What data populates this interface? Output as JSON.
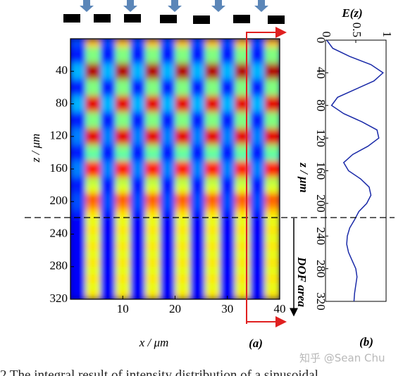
{
  "chart_data": [
    {
      "type": "heatmap",
      "xlabel": "x / μm",
      "ylabel": "z / μm",
      "panel_label": "(a)",
      "annotation": "DOF area",
      "xlim": [
        0,
        40
      ],
      "ylim": [
        320,
        0
      ],
      "xticks": [
        10,
        20,
        30,
        40
      ],
      "yticks": [
        40,
        80,
        120,
        160,
        200,
        240,
        280,
        320
      ],
      "colormap": "jet",
      "zlim": [
        0,
        1
      ],
      "matrix": [
        [
          0.2,
          0.7,
          0.2,
          0.7,
          0.2,
          0.7,
          0.2,
          0.7,
          0.2,
          0.7,
          0.2,
          0.7,
          0.2,
          0.7
        ],
        [
          0.15,
          0.5,
          0.15,
          0.5,
          0.15,
          0.5,
          0.15,
          0.5,
          0.15,
          0.5,
          0.15,
          0.5,
          0.15,
          0.5
        ],
        [
          0.15,
          0.5,
          0.15,
          0.5,
          0.15,
          0.5,
          0.15,
          0.5,
          0.15,
          0.5,
          0.15,
          0.5,
          0.15,
          0.5
        ],
        [
          0.3,
          0.95,
          0.3,
          0.95,
          0.3,
          0.95,
          0.3,
          0.95,
          0.3,
          0.95,
          0.3,
          0.95,
          0.3,
          0.95
        ],
        [
          0.3,
          0.95,
          0.3,
          0.95,
          0.3,
          0.95,
          0.3,
          0.95,
          0.3,
          0.95,
          0.3,
          0.95,
          0.3,
          0.95
        ],
        [
          0.15,
          0.5,
          0.15,
          0.5,
          0.15,
          0.5,
          0.15,
          0.5,
          0.15,
          0.5,
          0.15,
          0.5,
          0.15,
          0.5
        ],
        [
          0.15,
          0.5,
          0.15,
          0.5,
          0.15,
          0.5,
          0.15,
          0.5,
          0.15,
          0.5,
          0.15,
          0.5,
          0.15,
          0.5
        ],
        [
          0.3,
          0.9,
          0.3,
          0.9,
          0.3,
          0.9,
          0.3,
          0.9,
          0.3,
          0.9,
          0.3,
          0.9,
          0.3,
          0.9
        ],
        [
          0.3,
          0.9,
          0.3,
          0.9,
          0.3,
          0.9,
          0.3,
          0.9,
          0.3,
          0.9,
          0.3,
          0.9,
          0.3,
          0.9
        ],
        [
          0.15,
          0.5,
          0.15,
          0.5,
          0.15,
          0.5,
          0.15,
          0.5,
          0.15,
          0.5,
          0.15,
          0.5,
          0.15,
          0.5
        ],
        [
          0.15,
          0.5,
          0.15,
          0.5,
          0.15,
          0.5,
          0.15,
          0.5,
          0.15,
          0.5,
          0.15,
          0.5,
          0.15,
          0.5
        ],
        [
          0.25,
          0.9,
          0.25,
          0.9,
          0.25,
          0.9,
          0.25,
          0.9,
          0.25,
          0.9,
          0.25,
          0.9,
          0.25,
          0.9
        ],
        [
          0.25,
          0.9,
          0.25,
          0.9,
          0.25,
          0.9,
          0.25,
          0.9,
          0.25,
          0.9,
          0.25,
          0.9,
          0.25,
          0.9
        ],
        [
          0.15,
          0.5,
          0.15,
          0.5,
          0.15,
          0.5,
          0.15,
          0.5,
          0.15,
          0.5,
          0.15,
          0.5,
          0.15,
          0.5
        ],
        [
          0.15,
          0.45,
          0.15,
          0.45,
          0.15,
          0.45,
          0.15,
          0.45,
          0.15,
          0.45,
          0.15,
          0.45,
          0.15,
          0.45
        ],
        [
          0.25,
          0.85,
          0.25,
          0.85,
          0.25,
          0.85,
          0.25,
          0.85,
          0.25,
          0.85,
          0.25,
          0.85,
          0.25,
          0.85
        ],
        [
          0.25,
          0.85,
          0.25,
          0.85,
          0.25,
          0.85,
          0.25,
          0.85,
          0.25,
          0.85,
          0.25,
          0.85,
          0.25,
          0.85
        ],
        [
          0.15,
          0.55,
          0.15,
          0.55,
          0.15,
          0.55,
          0.15,
          0.55,
          0.15,
          0.55,
          0.15,
          0.55,
          0.15,
          0.55
        ],
        [
          0.15,
          0.6,
          0.15,
          0.6,
          0.15,
          0.6,
          0.15,
          0.6,
          0.15,
          0.6,
          0.15,
          0.6,
          0.15,
          0.6
        ],
        [
          0.2,
          0.8,
          0.2,
          0.8,
          0.2,
          0.8,
          0.2,
          0.8,
          0.2,
          0.8,
          0.2,
          0.8,
          0.2,
          0.8
        ],
        [
          0.2,
          0.75,
          0.2,
          0.75,
          0.2,
          0.75,
          0.2,
          0.75,
          0.2,
          0.75,
          0.2,
          0.75,
          0.2,
          0.75
        ],
        [
          0.15,
          0.65,
          0.15,
          0.65,
          0.15,
          0.65,
          0.15,
          0.65,
          0.15,
          0.65,
          0.15,
          0.65,
          0.15,
          0.65
        ],
        [
          0.12,
          0.6,
          0.12,
          0.6,
          0.12,
          0.6,
          0.12,
          0.6,
          0.12,
          0.6,
          0.12,
          0.6,
          0.12,
          0.6
        ],
        [
          0.12,
          0.65,
          0.12,
          0.65,
          0.12,
          0.65,
          0.12,
          0.65,
          0.12,
          0.65,
          0.12,
          0.65,
          0.12,
          0.65
        ],
        [
          0.12,
          0.6,
          0.12,
          0.6,
          0.12,
          0.6,
          0.12,
          0.6,
          0.12,
          0.6,
          0.12,
          0.6,
          0.12,
          0.6
        ],
        [
          0.12,
          0.65,
          0.12,
          0.65,
          0.12,
          0.65,
          0.12,
          0.65,
          0.12,
          0.65,
          0.12,
          0.65,
          0.12,
          0.65
        ],
        [
          0.12,
          0.6,
          0.12,
          0.6,
          0.12,
          0.6,
          0.12,
          0.6,
          0.12,
          0.6,
          0.12,
          0.6,
          0.12,
          0.6
        ],
        [
          0.12,
          0.65,
          0.12,
          0.65,
          0.12,
          0.65,
          0.12,
          0.65,
          0.12,
          0.65,
          0.12,
          0.65,
          0.12,
          0.65
        ],
        [
          0.12,
          0.6,
          0.12,
          0.6,
          0.12,
          0.6,
          0.12,
          0.6,
          0.12,
          0.6,
          0.12,
          0.6,
          0.12,
          0.6
        ],
        [
          0.12,
          0.65,
          0.12,
          0.65,
          0.12,
          0.65,
          0.12,
          0.65,
          0.12,
          0.65,
          0.12,
          0.65,
          0.12,
          0.65
        ],
        [
          0.12,
          0.6,
          0.12,
          0.6,
          0.12,
          0.6,
          0.12,
          0.6,
          0.12,
          0.6,
          0.12,
          0.6,
          0.12,
          0.6
        ],
        [
          0.12,
          0.65,
          0.12,
          0.65,
          0.12,
          0.65,
          0.12,
          0.65,
          0.12,
          0.65,
          0.12,
          0.65,
          0.12,
          0.65
        ]
      ]
    },
    {
      "type": "line",
      "title": "E(z)",
      "ylabel": "z / μm",
      "panel_label": "(b)",
      "xlim": [
        0,
        1
      ],
      "ylim": [
        320,
        0
      ],
      "xticks": [
        0,
        0.5,
        1
      ],
      "yticks": [
        0,
        40,
        80,
        120,
        160,
        200,
        240,
        280,
        320
      ],
      "z": [
        0,
        10,
        20,
        30,
        40,
        50,
        60,
        70,
        80,
        90,
        100,
        110,
        120,
        130,
        140,
        150,
        160,
        170,
        180,
        190,
        200,
        210,
        220,
        230,
        240,
        250,
        260,
        270,
        280,
        290,
        300,
        310,
        320
      ],
      "series": [
        {
          "color": "#1a2aa8",
          "values": [
            0.02,
            0.12,
            0.4,
            0.75,
            0.95,
            0.8,
            0.5,
            0.2,
            0.1,
            0.3,
            0.6,
            0.85,
            0.88,
            0.7,
            0.45,
            0.3,
            0.38,
            0.58,
            0.72,
            0.75,
            0.68,
            0.55,
            0.48,
            0.4,
            0.36,
            0.35,
            0.38,
            0.44,
            0.5,
            0.52,
            0.5,
            0.48,
            0.47
          ]
        }
      ]
    }
  ],
  "watermark": "知乎 @Sean Chu",
  "caption": "2    The integral result of intensity distribution of a sinusoidal"
}
